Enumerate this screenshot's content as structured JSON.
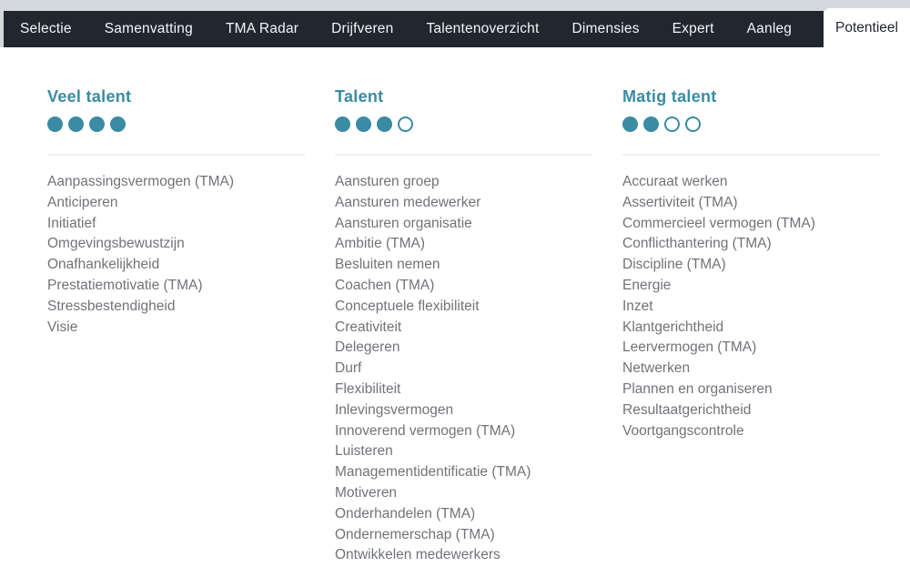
{
  "colors": {
    "accent_teal": "#3a8ba3",
    "tabbar_bg": "#22262e",
    "tab_text": "#f4f5f6",
    "active_tab_bg": "#ffffff",
    "active_tab_text": "#22262e",
    "top_strip": "#d5d9dd",
    "list_text": "#707378",
    "divider": "#efefef"
  },
  "tabbar": {
    "tabs": [
      {
        "label": "Selectie"
      },
      {
        "label": "Samenvatting"
      },
      {
        "label": "TMA Radar"
      },
      {
        "label": "Drijfveren"
      },
      {
        "label": "Talentenoverzicht"
      },
      {
        "label": "Dimensies"
      },
      {
        "label": "Expert"
      },
      {
        "label": "Aanleg"
      }
    ],
    "active_tab": {
      "label": "Potentieel"
    }
  },
  "columns": [
    {
      "title": "Veel talent",
      "dots_filled": 4,
      "dots_total": 4,
      "items": [
        "Aanpassingsvermogen (TMA)",
        "Anticiperen",
        "Initiatief",
        "Omgevingsbewustzijn",
        "Onafhankelijkheid",
        "Prestatiemotivatie (TMA)",
        "Stressbestendigheid",
        "Visie"
      ]
    },
    {
      "title": "Talent",
      "dots_filled": 3,
      "dots_total": 4,
      "items": [
        "Aansturen groep",
        "Aansturen medewerker",
        "Aansturen organisatie",
        "Ambitie (TMA)",
        "Besluiten nemen",
        "Coachen (TMA)",
        "Conceptuele flexibiliteit",
        "Creativiteit",
        "Delegeren",
        "Durf",
        "Flexibiliteit",
        "Inlevingsvermogen",
        "Innoverend vermogen (TMA)",
        "Luisteren",
        "Managementidentificatie (TMA)",
        "Motiveren",
        "Onderhandelen (TMA)",
        "Ondernemerschap (TMA)",
        "Ontwikkelen medewerkers"
      ]
    },
    {
      "title": "Matig talent",
      "dots_filled": 2,
      "dots_total": 4,
      "items": [
        "Accuraat werken",
        "Assertiviteit (TMA)",
        "Commercieel vermogen (TMA)",
        "Conflicthantering (TMA)",
        "Discipline (TMA)",
        "Energie",
        "Inzet",
        "Klantgerichtheid",
        "Leervermogen (TMA)",
        "Netwerken",
        "Plannen en organiseren",
        "Resultaatgerichtheid",
        "Voortgangscontrole"
      ]
    }
  ]
}
